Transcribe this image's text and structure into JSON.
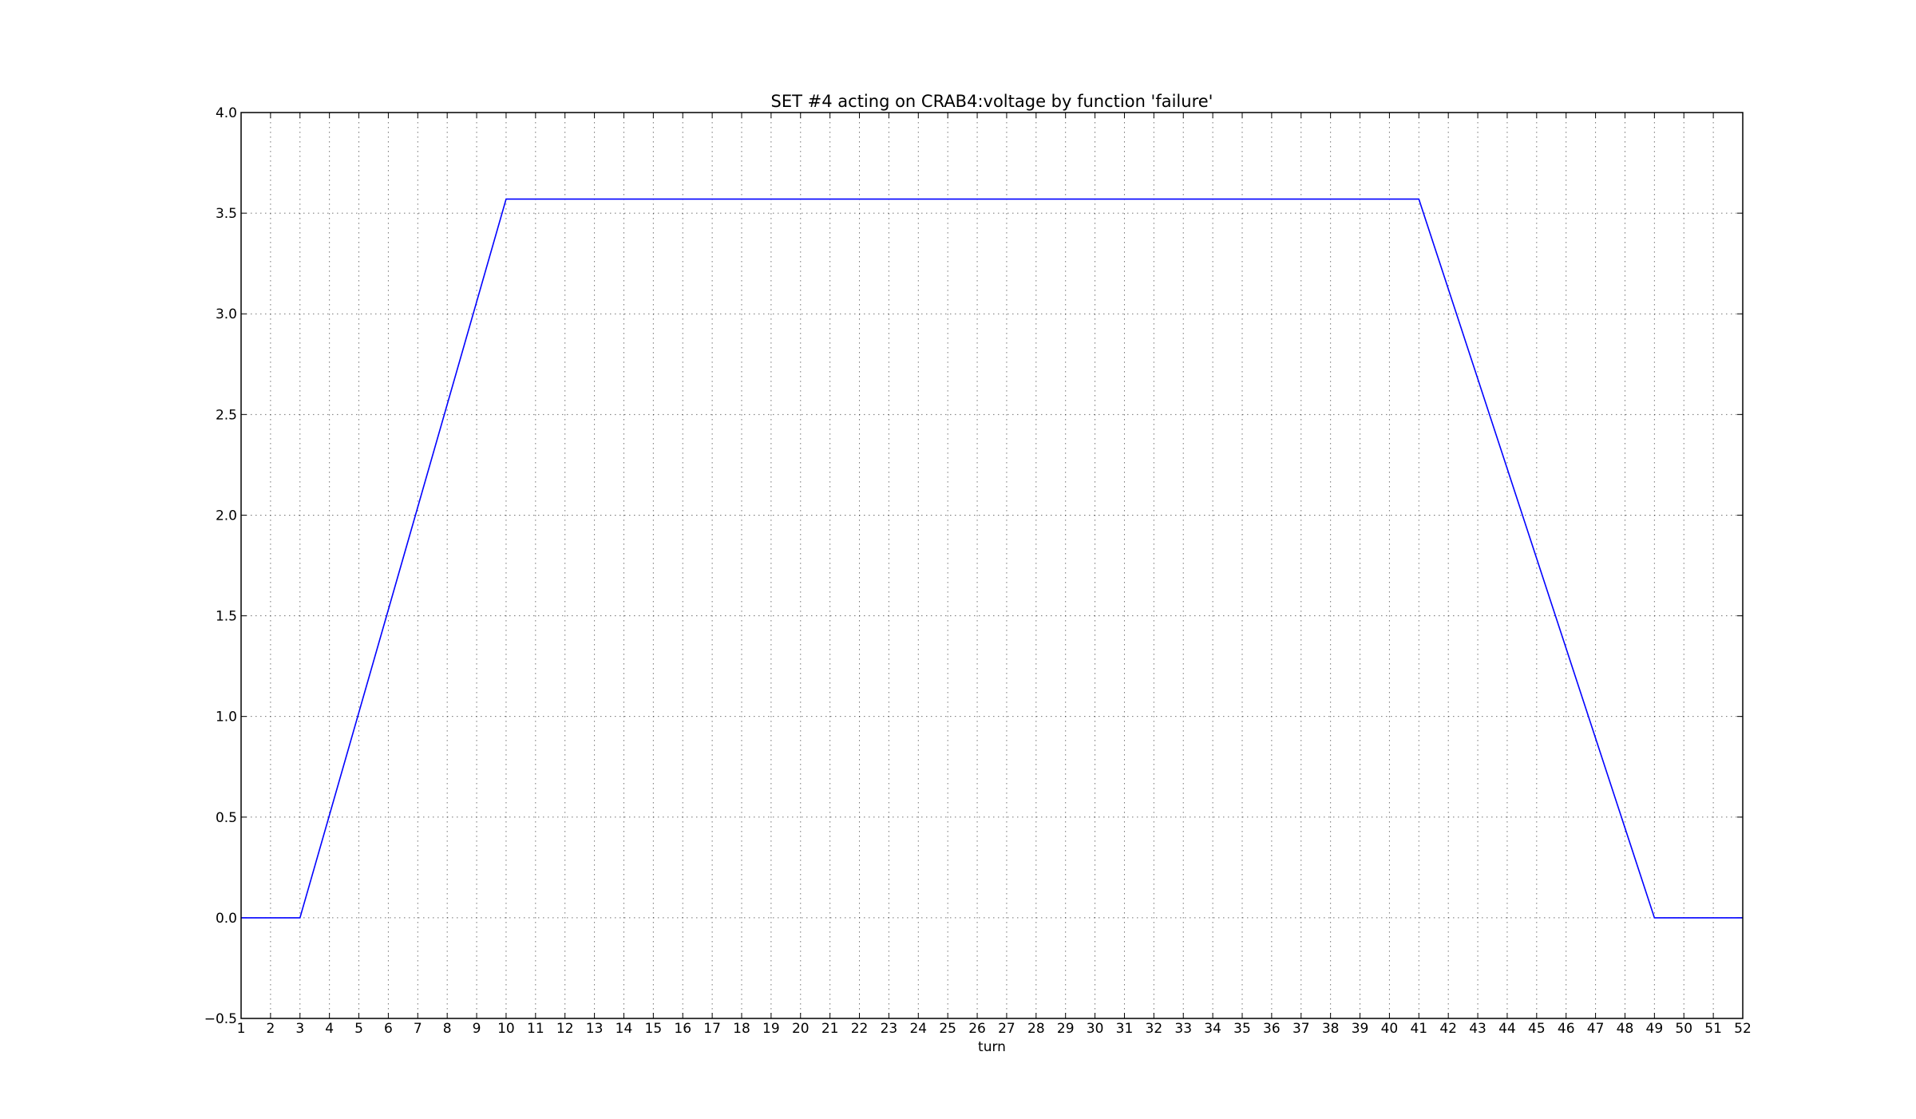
{
  "chart_data": {
    "type": "line",
    "title": "SET #4 acting on CRAB4:voltage by function 'failure'",
    "xlabel": "turn",
    "ylabel": "",
    "xlim": [
      1,
      52
    ],
    "ylim": [
      -0.5,
      4.0
    ],
    "x_ticks": [
      "1",
      "2",
      "3",
      "4",
      "5",
      "6",
      "7",
      "8",
      "9",
      "10",
      "11",
      "12",
      "13",
      "14",
      "15",
      "16",
      "17",
      "18",
      "19",
      "20",
      "21",
      "22",
      "23",
      "24",
      "25",
      "26",
      "27",
      "28",
      "29",
      "30",
      "31",
      "32",
      "33",
      "34",
      "35",
      "36",
      "37",
      "38",
      "39",
      "40",
      "41",
      "42",
      "43",
      "44",
      "45",
      "46",
      "47",
      "48",
      "49",
      "50",
      "51",
      "52"
    ],
    "y_ticks": [
      "−0.5",
      "0.0",
      "0.5",
      "1.0",
      "1.5",
      "2.0",
      "2.5",
      "3.0",
      "3.5",
      "4.0"
    ],
    "grid": true,
    "line_color": "#0000ff",
    "series": [
      {
        "x": [
          1,
          3,
          10,
          41,
          49,
          52
        ],
        "values": [
          0.0,
          0.0,
          3.57,
          3.57,
          0.0,
          0.0
        ]
      }
    ]
  }
}
